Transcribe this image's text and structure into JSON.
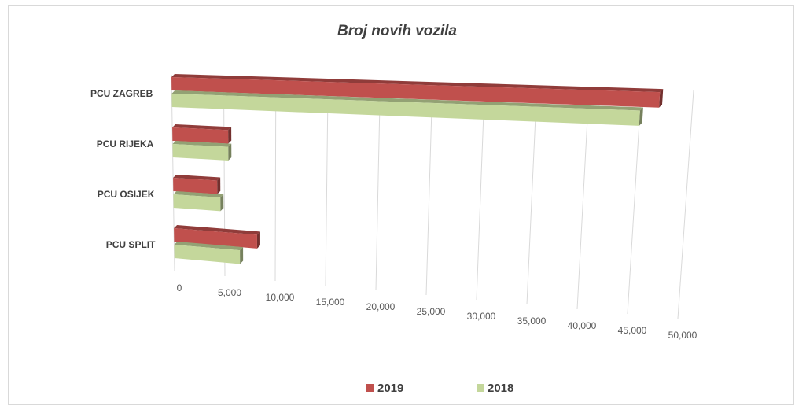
{
  "chart_data": {
    "type": "bar3d",
    "orientation": "horizontal",
    "title": "Broj novih vozila",
    "categories": [
      "PCU ZAGREB",
      "PCU RIJEKA",
      "PCU OSIJEK",
      "PCU SPLIT"
    ],
    "series": [
      {
        "name": "2019",
        "color": "#c0504d",
        "values": [
          46800,
          5400,
          4300,
          8200
        ]
      },
      {
        "name": "2018",
        "color": "#c4d79b",
        "values": [
          45000,
          5400,
          4600,
          6500
        ]
      }
    ],
    "xlim": [
      0,
      50000
    ],
    "xticks": [
      0,
      {
        "value": 5000,
        "label": "5,000"
      },
      {
        "value": 10000,
        "label": "10,000"
      },
      {
        "value": 15000,
        "label": "15,000"
      },
      {
        "value": 20000,
        "label": "20,000"
      },
      {
        "value": 25000,
        "label": "25,000"
      },
      {
        "value": 30000,
        "label": "30,000"
      },
      {
        "value": 35000,
        "label": "35,000"
      },
      {
        "value": 40000,
        "label": "40,000"
      },
      {
        "value": 45000,
        "label": "45,000"
      },
      {
        "value": 50000,
        "label": "50,000"
      }
    ],
    "grid": true,
    "legend": "bottom"
  }
}
